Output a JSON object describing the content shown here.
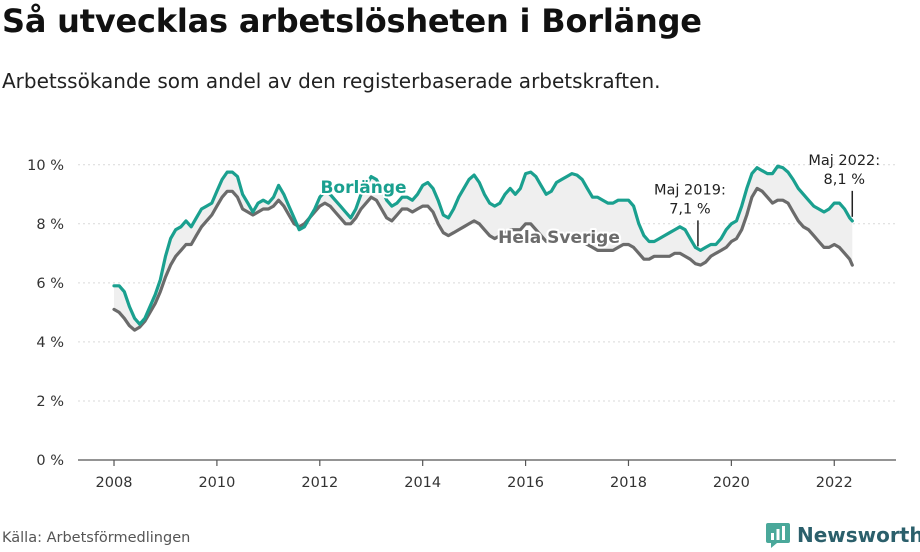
{
  "header": {
    "title": "Så utvecklas arbetslösheten i Borlänge",
    "subtitle": "Arbetssökande som andel av den registerbaserade arbetskraften."
  },
  "footer": {
    "source": "Källa: Arbetsförmedlingen",
    "brand": "Newsworthy"
  },
  "colors": {
    "borlange": "#1aa08f",
    "sverige": "#6b6b6b",
    "fill": "#efefef",
    "brand": "#2b5f6b"
  },
  "chart_data": {
    "type": "line",
    "x_ticks": [
      2008,
      2010,
      2012,
      2014,
      2016,
      2018,
      2020,
      2022
    ],
    "xlim": [
      2007.3,
      2023.2
    ],
    "y_ticks": [
      {
        "value": 0,
        "label": "0 %"
      },
      {
        "value": 2,
        "label": "2 %"
      },
      {
        "value": 4,
        "label": "4 %"
      },
      {
        "value": 6,
        "label": "6 %"
      },
      {
        "value": 8,
        "label": "8 %"
      },
      {
        "value": 10,
        "label": "10 %"
      }
    ],
    "ylim": [
      0,
      10.5
    ],
    "grid": true,
    "series": [
      {
        "name": "Borlänge",
        "color": "#1aa08f",
        "points": [
          [
            2008.0,
            5.9
          ],
          [
            2008.1,
            5.9
          ],
          [
            2008.2,
            5.7
          ],
          [
            2008.3,
            5.2
          ],
          [
            2008.4,
            4.8
          ],
          [
            2008.5,
            4.6
          ],
          [
            2008.6,
            4.8
          ],
          [
            2008.7,
            5.2
          ],
          [
            2008.8,
            5.6
          ],
          [
            2008.9,
            6.1
          ],
          [
            2009.0,
            6.9
          ],
          [
            2009.1,
            7.5
          ],
          [
            2009.2,
            7.8
          ],
          [
            2009.3,
            7.9
          ],
          [
            2009.4,
            8.1
          ],
          [
            2009.5,
            7.9
          ],
          [
            2009.6,
            8.2
          ],
          [
            2009.7,
            8.5
          ],
          [
            2009.8,
            8.6
          ],
          [
            2009.9,
            8.7
          ],
          [
            2010.0,
            9.1
          ],
          [
            2010.1,
            9.5
          ],
          [
            2010.2,
            9.75
          ],
          [
            2010.3,
            9.75
          ],
          [
            2010.4,
            9.6
          ],
          [
            2010.5,
            9.0
          ],
          [
            2010.6,
            8.7
          ],
          [
            2010.7,
            8.4
          ],
          [
            2010.8,
            8.7
          ],
          [
            2010.9,
            8.8
          ],
          [
            2011.0,
            8.7
          ],
          [
            2011.1,
            8.9
          ],
          [
            2011.2,
            9.3
          ],
          [
            2011.3,
            9.0
          ],
          [
            2011.4,
            8.6
          ],
          [
            2011.5,
            8.2
          ],
          [
            2011.6,
            7.8
          ],
          [
            2011.7,
            7.9
          ],
          [
            2011.8,
            8.2
          ],
          [
            2011.9,
            8.5
          ],
          [
            2012.0,
            8.9
          ],
          [
            2012.1,
            9.1
          ],
          [
            2012.2,
            9.0
          ],
          [
            2012.3,
            8.8
          ],
          [
            2012.4,
            8.6
          ],
          [
            2012.5,
            8.4
          ],
          [
            2012.6,
            8.2
          ],
          [
            2012.7,
            8.5
          ],
          [
            2012.8,
            9.0
          ],
          [
            2012.9,
            9.3
          ],
          [
            2013.0,
            9.6
          ],
          [
            2013.1,
            9.5
          ],
          [
            2013.2,
            9.2
          ],
          [
            2013.3,
            8.8
          ],
          [
            2013.4,
            8.6
          ],
          [
            2013.5,
            8.7
          ],
          [
            2013.6,
            8.9
          ],
          [
            2013.7,
            8.9
          ],
          [
            2013.8,
            8.8
          ],
          [
            2013.9,
            9.0
          ],
          [
            2014.0,
            9.3
          ],
          [
            2014.1,
            9.4
          ],
          [
            2014.2,
            9.2
          ],
          [
            2014.3,
            8.8
          ],
          [
            2014.4,
            8.3
          ],
          [
            2014.5,
            8.2
          ],
          [
            2014.6,
            8.5
          ],
          [
            2014.7,
            8.9
          ],
          [
            2014.8,
            9.2
          ],
          [
            2014.9,
            9.5
          ],
          [
            2015.0,
            9.65
          ],
          [
            2015.1,
            9.4
          ],
          [
            2015.2,
            9.0
          ],
          [
            2015.3,
            8.7
          ],
          [
            2015.4,
            8.6
          ],
          [
            2015.5,
            8.7
          ],
          [
            2015.6,
            9.0
          ],
          [
            2015.7,
            9.2
          ],
          [
            2015.8,
            9.0
          ],
          [
            2015.9,
            9.2
          ],
          [
            2016.0,
            9.7
          ],
          [
            2016.1,
            9.75
          ],
          [
            2016.2,
            9.6
          ],
          [
            2016.3,
            9.3
          ],
          [
            2016.4,
            9.0
          ],
          [
            2016.5,
            9.1
          ],
          [
            2016.6,
            9.4
          ],
          [
            2016.7,
            9.5
          ],
          [
            2016.8,
            9.6
          ],
          [
            2016.9,
            9.7
          ],
          [
            2017.0,
            9.65
          ],
          [
            2017.1,
            9.5
          ],
          [
            2017.2,
            9.2
          ],
          [
            2017.3,
            8.9
          ],
          [
            2017.4,
            8.9
          ],
          [
            2017.5,
            8.8
          ],
          [
            2017.6,
            8.7
          ],
          [
            2017.7,
            8.7
          ],
          [
            2017.8,
            8.8
          ],
          [
            2017.9,
            8.8
          ],
          [
            2018.0,
            8.8
          ],
          [
            2018.1,
            8.6
          ],
          [
            2018.2,
            8.0
          ],
          [
            2018.3,
            7.6
          ],
          [
            2018.4,
            7.4
          ],
          [
            2018.5,
            7.4
          ],
          [
            2018.6,
            7.5
          ],
          [
            2018.7,
            7.6
          ],
          [
            2018.8,
            7.7
          ],
          [
            2018.9,
            7.8
          ],
          [
            2019.0,
            7.9
          ],
          [
            2019.1,
            7.8
          ],
          [
            2019.2,
            7.5
          ],
          [
            2019.3,
            7.2
          ],
          [
            2019.4,
            7.1
          ],
          [
            2019.5,
            7.2
          ],
          [
            2019.6,
            7.3
          ],
          [
            2019.7,
            7.3
          ],
          [
            2019.8,
            7.5
          ],
          [
            2019.9,
            7.8
          ],
          [
            2020.0,
            8.0
          ],
          [
            2020.1,
            8.1
          ],
          [
            2020.2,
            8.6
          ],
          [
            2020.3,
            9.2
          ],
          [
            2020.4,
            9.7
          ],
          [
            2020.5,
            9.9
          ],
          [
            2020.6,
            9.8
          ],
          [
            2020.7,
            9.7
          ],
          [
            2020.8,
            9.7
          ],
          [
            2020.9,
            9.95
          ],
          [
            2021.0,
            9.9
          ],
          [
            2021.1,
            9.75
          ],
          [
            2021.2,
            9.5
          ],
          [
            2021.3,
            9.2
          ],
          [
            2021.4,
            9.0
          ],
          [
            2021.5,
            8.8
          ],
          [
            2021.6,
            8.6
          ],
          [
            2021.7,
            8.5
          ],
          [
            2021.8,
            8.4
          ],
          [
            2021.9,
            8.5
          ],
          [
            2022.0,
            8.7
          ],
          [
            2022.1,
            8.7
          ],
          [
            2022.2,
            8.5
          ],
          [
            2022.3,
            8.2
          ],
          [
            2022.35,
            8.1
          ]
        ]
      },
      {
        "name": "Hela Sverige",
        "color": "#6b6b6b",
        "points": [
          [
            2008.0,
            5.1
          ],
          [
            2008.1,
            5.0
          ],
          [
            2008.2,
            4.8
          ],
          [
            2008.3,
            4.55
          ],
          [
            2008.4,
            4.4
          ],
          [
            2008.5,
            4.5
          ],
          [
            2008.6,
            4.7
          ],
          [
            2008.7,
            5.0
          ],
          [
            2008.8,
            5.3
          ],
          [
            2008.9,
            5.7
          ],
          [
            2009.0,
            6.2
          ],
          [
            2009.1,
            6.6
          ],
          [
            2009.2,
            6.9
          ],
          [
            2009.3,
            7.1
          ],
          [
            2009.4,
            7.3
          ],
          [
            2009.5,
            7.3
          ],
          [
            2009.6,
            7.6
          ],
          [
            2009.7,
            7.9
          ],
          [
            2009.8,
            8.1
          ],
          [
            2009.9,
            8.3
          ],
          [
            2010.0,
            8.6
          ],
          [
            2010.1,
            8.9
          ],
          [
            2010.2,
            9.1
          ],
          [
            2010.3,
            9.1
          ],
          [
            2010.4,
            8.9
          ],
          [
            2010.5,
            8.5
          ],
          [
            2010.6,
            8.4
          ],
          [
            2010.7,
            8.3
          ],
          [
            2010.8,
            8.4
          ],
          [
            2010.9,
            8.5
          ],
          [
            2011.0,
            8.5
          ],
          [
            2011.1,
            8.6
          ],
          [
            2011.2,
            8.8
          ],
          [
            2011.3,
            8.6
          ],
          [
            2011.4,
            8.3
          ],
          [
            2011.5,
            8.0
          ],
          [
            2011.6,
            7.9
          ],
          [
            2011.7,
            8.0
          ],
          [
            2011.8,
            8.2
          ],
          [
            2011.9,
            8.4
          ],
          [
            2012.0,
            8.6
          ],
          [
            2012.1,
            8.7
          ],
          [
            2012.2,
            8.6
          ],
          [
            2012.3,
            8.4
          ],
          [
            2012.4,
            8.2
          ],
          [
            2012.5,
            8.0
          ],
          [
            2012.6,
            8.0
          ],
          [
            2012.7,
            8.2
          ],
          [
            2012.8,
            8.5
          ],
          [
            2012.9,
            8.7
          ],
          [
            2013.0,
            8.9
          ],
          [
            2013.1,
            8.8
          ],
          [
            2013.2,
            8.5
          ],
          [
            2013.3,
            8.2
          ],
          [
            2013.4,
            8.1
          ],
          [
            2013.5,
            8.3
          ],
          [
            2013.6,
            8.5
          ],
          [
            2013.7,
            8.5
          ],
          [
            2013.8,
            8.4
          ],
          [
            2013.9,
            8.5
          ],
          [
            2014.0,
            8.6
          ],
          [
            2014.1,
            8.6
          ],
          [
            2014.2,
            8.4
          ],
          [
            2014.3,
            8.0
          ],
          [
            2014.4,
            7.7
          ],
          [
            2014.5,
            7.6
          ],
          [
            2014.6,
            7.7
          ],
          [
            2014.7,
            7.8
          ],
          [
            2014.8,
            7.9
          ],
          [
            2014.9,
            8.0
          ],
          [
            2015.0,
            8.1
          ],
          [
            2015.1,
            8.0
          ],
          [
            2015.2,
            7.8
          ],
          [
            2015.3,
            7.6
          ],
          [
            2015.4,
            7.5
          ],
          [
            2015.5,
            7.6
          ],
          [
            2015.6,
            7.7
          ],
          [
            2015.7,
            7.8
          ],
          [
            2015.8,
            7.8
          ],
          [
            2015.9,
            7.8
          ],
          [
            2016.0,
            8.0
          ],
          [
            2016.1,
            8.0
          ],
          [
            2016.2,
            7.8
          ],
          [
            2016.3,
            7.6
          ],
          [
            2016.4,
            7.4
          ],
          [
            2016.5,
            7.4
          ],
          [
            2016.6,
            7.5
          ],
          [
            2016.7,
            7.6
          ],
          [
            2016.8,
            7.6
          ],
          [
            2016.9,
            7.5
          ],
          [
            2017.0,
            7.5
          ],
          [
            2017.1,
            7.4
          ],
          [
            2017.2,
            7.3
          ],
          [
            2017.3,
            7.2
          ],
          [
            2017.4,
            7.1
          ],
          [
            2017.5,
            7.1
          ],
          [
            2017.6,
            7.1
          ],
          [
            2017.7,
            7.1
          ],
          [
            2017.8,
            7.2
          ],
          [
            2017.9,
            7.3
          ],
          [
            2018.0,
            7.3
          ],
          [
            2018.1,
            7.2
          ],
          [
            2018.2,
            7.0
          ],
          [
            2018.3,
            6.8
          ],
          [
            2018.4,
            6.8
          ],
          [
            2018.5,
            6.9
          ],
          [
            2018.6,
            6.9
          ],
          [
            2018.7,
            6.9
          ],
          [
            2018.8,
            6.9
          ],
          [
            2018.9,
            7.0
          ],
          [
            2019.0,
            7.0
          ],
          [
            2019.1,
            6.9
          ],
          [
            2019.2,
            6.8
          ],
          [
            2019.3,
            6.65
          ],
          [
            2019.4,
            6.6
          ],
          [
            2019.5,
            6.7
          ],
          [
            2019.6,
            6.9
          ],
          [
            2019.7,
            7.0
          ],
          [
            2019.8,
            7.1
          ],
          [
            2019.9,
            7.2
          ],
          [
            2020.0,
            7.4
          ],
          [
            2020.1,
            7.5
          ],
          [
            2020.2,
            7.8
          ],
          [
            2020.3,
            8.3
          ],
          [
            2020.4,
            8.9
          ],
          [
            2020.5,
            9.2
          ],
          [
            2020.6,
            9.1
          ],
          [
            2020.7,
            8.9
          ],
          [
            2020.8,
            8.7
          ],
          [
            2020.9,
            8.8
          ],
          [
            2021.0,
            8.8
          ],
          [
            2021.1,
            8.7
          ],
          [
            2021.2,
            8.4
          ],
          [
            2021.3,
            8.1
          ],
          [
            2021.4,
            7.9
          ],
          [
            2021.5,
            7.8
          ],
          [
            2021.6,
            7.6
          ],
          [
            2021.7,
            7.4
          ],
          [
            2021.8,
            7.2
          ],
          [
            2021.9,
            7.2
          ],
          [
            2022.0,
            7.3
          ],
          [
            2022.1,
            7.2
          ],
          [
            2022.2,
            7.0
          ],
          [
            2022.3,
            6.8
          ],
          [
            2022.35,
            6.6
          ]
        ]
      }
    ],
    "series_labels": [
      {
        "series": 0,
        "text": "Borlänge",
        "x": 2012.85,
        "y": 9.05
      },
      {
        "series": 1,
        "text": "Hela Sverige",
        "x": 2016.65,
        "y": 7.35
      }
    ],
    "annotations": [
      {
        "lines": [
          "Maj 2019:",
          "7,1 %"
        ],
        "x": 2019.35,
        "y": 7.1
      },
      {
        "lines": [
          "Maj 2022:",
          "8,1 %"
        ],
        "x": 2022.35,
        "y": 8.1
      }
    ]
  }
}
